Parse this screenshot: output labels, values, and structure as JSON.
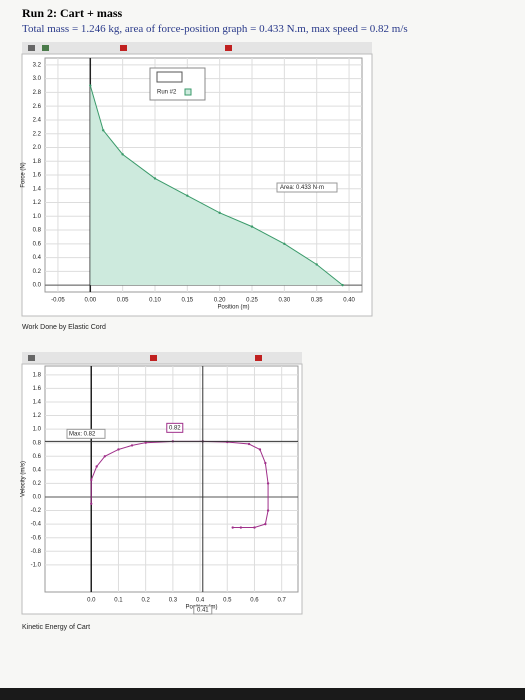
{
  "header": {
    "title": "Run 2: Cart + mass",
    "subtitle": "Total mass = 1.246 kg, area of force-position graph = 0.433 N.m, max speed = 0.82 m/s"
  },
  "chart_data": [
    {
      "type": "line",
      "caption": "Work Done by Elastic Cord",
      "ylabel": "Force (N)",
      "xlabel": "Position (m)",
      "legend": "Run #2",
      "annotation": "Area: 0.433 N·m",
      "fill_area": true,
      "color": "#3a9a6a",
      "area_color": "#cdeadd",
      "grid": true,
      "x": [
        0,
        0.02,
        0.05,
        0.1,
        0.15,
        0.2,
        0.25,
        0.3,
        0.35,
        0.39
      ],
      "values": [
        2.9,
        2.25,
        1.9,
        1.55,
        1.3,
        1.05,
        0.85,
        0.6,
        0.3,
        0
      ],
      "xlim": [
        -0.07,
        0.42
      ],
      "ylim": [
        -0.1,
        3.3
      ],
      "xticks": [
        {
          "value": -0.05,
          "label": "-0.05"
        },
        {
          "value": 0,
          "label": "0.00"
        },
        {
          "value": 0.05,
          "label": "0.05"
        },
        {
          "value": 0.1,
          "label": "0.10"
        },
        {
          "value": 0.15,
          "label": "0.15"
        },
        {
          "value": 0.2,
          "label": "0.20"
        },
        {
          "value": 0.25,
          "label": "0.25"
        },
        {
          "value": 0.3,
          "label": "0.30"
        },
        {
          "value": 0.35,
          "label": "0.35"
        },
        {
          "value": 0.4,
          "label": "0.40"
        }
      ],
      "yticks": [
        {
          "value": 0,
          "label": "0.0"
        },
        0.2,
        0.4,
        0.6,
        0.8,
        {
          "value": 1,
          "label": "1.0"
        },
        1.2,
        1.4,
        1.6,
        1.8,
        {
          "value": 2,
          "label": "2.0"
        },
        2.2,
        2.4,
        2.6,
        2.8,
        {
          "value": 3,
          "label": "3.0"
        },
        3.2
      ]
    },
    {
      "type": "line",
      "caption": "Kinetic Energy of Cart",
      "ylabel": "Velocity (m/s)",
      "xlabel": "Position (m)",
      "annotation": "Max: 0.82",
      "max_label": "0.82",
      "cursor": 0.41,
      "cursor_label": "0.41",
      "fill_area": false,
      "color": "#a0308a",
      "grid": true,
      "x": [
        0,
        0,
        0.02,
        0.05,
        0.1,
        0.15,
        0.2,
        0.3,
        0.41,
        0.5,
        0.58,
        0.62,
        0.64,
        0.65,
        0.65,
        0.64,
        0.6,
        0.55,
        0.52
      ],
      "values": [
        -0.1,
        0.25,
        0.45,
        0.6,
        0.7,
        0.76,
        0.8,
        0.82,
        0.82,
        0.81,
        0.78,
        0.7,
        0.5,
        0.2,
        -0.2,
        -0.4,
        -0.45,
        -0.45,
        -0.45
      ],
      "xlim": [
        -0.17,
        0.76
      ],
      "ylim": [
        -1.4,
        1.93
      ],
      "xticks": [
        {
          "value": 0,
          "label": "0.0"
        },
        0.1,
        0.2,
        0.3,
        0.4,
        0.5,
        0.6,
        0.7
      ],
      "yticks": [
        {
          "value": -1,
          "label": "-1.0"
        },
        -0.8,
        -0.6,
        -0.4,
        -0.2,
        {
          "value": 0,
          "label": "0.0"
        },
        0.2,
        0.4,
        0.6,
        0.8,
        {
          "value": 1,
          "label": "1.0"
        },
        1.2,
        1.4,
        1.6,
        1.8
      ]
    }
  ]
}
